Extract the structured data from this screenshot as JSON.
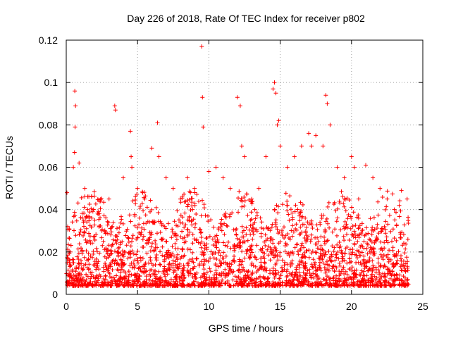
{
  "chart_data": {
    "type": "scatter",
    "title": "Day 226 of 2018, Rate Of TEC Index for receiver p802",
    "xlabel": "GPS time / hours",
    "ylabel": "ROTI / TECUs",
    "xlim": [
      0,
      25
    ],
    "ylim": [
      0,
      0.12
    ],
    "xticks": [
      0,
      5,
      10,
      15,
      20,
      25
    ],
    "yticks": [
      0,
      0.02,
      0.04,
      0.06,
      0.08,
      0.1,
      0.12
    ],
    "xtick_labels": [
      "0",
      "5",
      "10",
      "15",
      "20",
      "25"
    ],
    "ytick_labels": [
      "0",
      "0.02",
      "0.04",
      "0.06",
      "0.08",
      "0.1",
      "0.12"
    ],
    "grid": true,
    "marker": "plus",
    "color": "#ff0000",
    "series": [
      {
        "name": "ROTI",
        "x": [
          0.05,
          0.1,
          0.2,
          0.5,
          0.6,
          0.65,
          0.62,
          0.58,
          0.9,
          1.3,
          1.5,
          2.0,
          2.5,
          3.0,
          3.4,
          3.45,
          4.0,
          4.5,
          4.55,
          4.6,
          5.0,
          5.5,
          6.0,
          6.4,
          6.5,
          7.0,
          7.5,
          8.0,
          8.5,
          9.0,
          9.5,
          9.55,
          9.6,
          10.0,
          10.5,
          11.0,
          11.5,
          12.0,
          12.2,
          12.3,
          12.5,
          13.0,
          13.5,
          14.0,
          14.5,
          14.6,
          14.7,
          14.8,
          14.9,
          15.0,
          15.5,
          16.0,
          16.5,
          17.0,
          17.2,
          17.5,
          18.0,
          18.2,
          18.3,
          18.5,
          19.0,
          19.5,
          20.0,
          20.2,
          20.5,
          21.0,
          21.5,
          22.0,
          22.5,
          23.0,
          23.5,
          23.9
        ],
        "y": [
          0.048,
          0.032,
          0.02,
          0.06,
          0.096,
          0.089,
          0.079,
          0.067,
          0.062,
          0.05,
          0.04,
          0.035,
          0.03,
          0.045,
          0.089,
          0.087,
          0.055,
          0.077,
          0.065,
          0.06,
          0.05,
          0.045,
          0.069,
          0.081,
          0.065,
          0.055,
          0.05,
          0.045,
          0.055,
          0.05,
          0.117,
          0.093,
          0.079,
          0.058,
          0.06,
          0.055,
          0.05,
          0.093,
          0.089,
          0.07,
          0.065,
          0.045,
          0.05,
          0.065,
          0.097,
          0.1,
          0.095,
          0.08,
          0.082,
          0.07,
          0.06,
          0.065,
          0.07,
          0.076,
          0.07,
          0.075,
          0.07,
          0.094,
          0.09,
          0.08,
          0.06,
          0.055,
          0.065,
          0.06,
          0.045,
          0.061,
          0.055,
          0.05,
          0.045,
          0.04,
          0.049,
          0.045
        ]
      }
    ]
  }
}
